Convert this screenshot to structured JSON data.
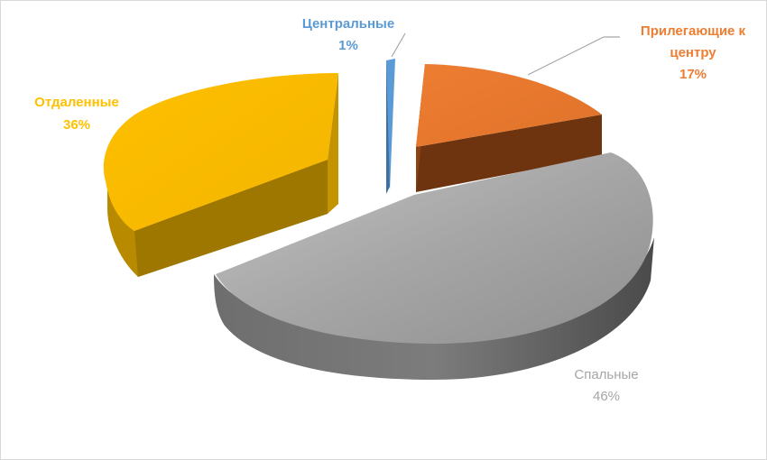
{
  "chart_data": {
    "type": "pie",
    "style": "3d-exploded",
    "title": "",
    "slices": [
      {
        "name": "Центральные",
        "value": 1,
        "label_value": "1%",
        "color": "#5b9bd5"
      },
      {
        "name": "Прилегающие к центру",
        "value": 17,
        "label_value": "17%",
        "color": "#ed7d31"
      },
      {
        "name": "Спальные",
        "value": 46,
        "label_value": "46%",
        "color": "#a5a5a5"
      },
      {
        "name": "Отдаленные",
        "value": 36,
        "label_value": "36%",
        "color": "#ffc000"
      }
    ],
    "label_lines": {
      "Прилегающие к": "Прилегающие к",
      "центру": "центру"
    },
    "legend": "none"
  }
}
